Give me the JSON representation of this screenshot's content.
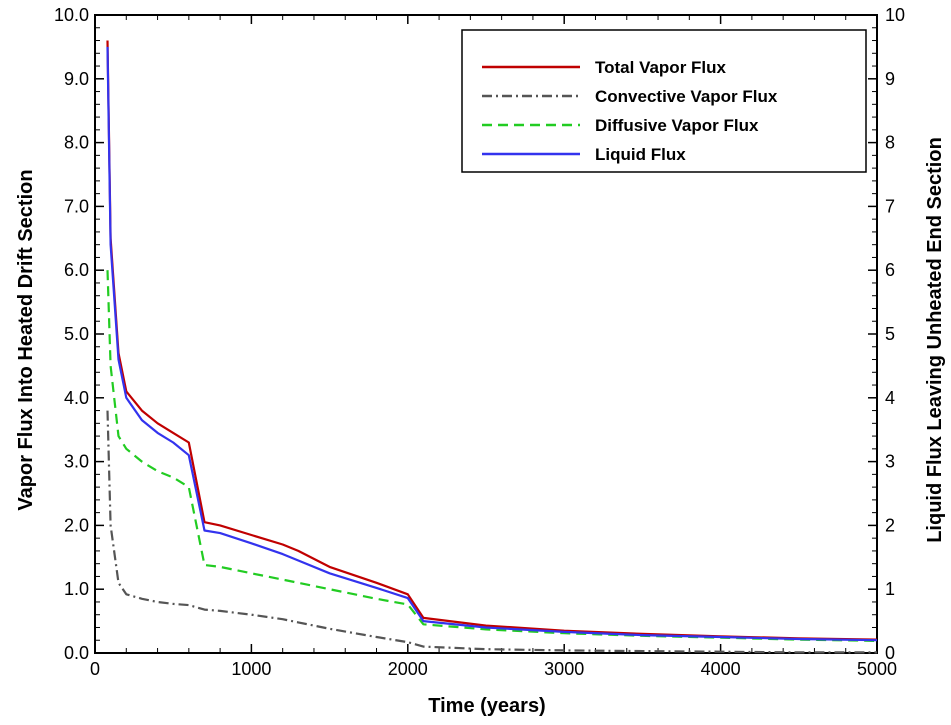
{
  "chart_data": {
    "type": "line",
    "title": "",
    "xlabel": "Time  (years)",
    "ylabel_left": "Vapor Flux Into Heated Drift Section",
    "ylabel_right": "Liquid Flux Leaving Unheated End Section",
    "xlim": [
      0,
      5000
    ],
    "ylim_left": [
      0,
      10
    ],
    "ylim_right": [
      0,
      10
    ],
    "x_ticks": [
      "0",
      "1000",
      "2000",
      "3000",
      "4000",
      "5000"
    ],
    "y_left_ticks": [
      "0.0",
      "1.0",
      "2.0",
      "3.0",
      "4.0",
      "5.0",
      "6.0",
      "7.0",
      "8.0",
      "9.0",
      "10.0"
    ],
    "y_right_ticks": [
      "0",
      "1",
      "2",
      "3",
      "4",
      "5",
      "6",
      "7",
      "8",
      "9",
      "10"
    ],
    "grid": false,
    "legend_position": "top-right",
    "series": [
      {
        "name": "Total Vapor Flux",
        "color": "#c00000",
        "dash": "solid",
        "axis": "left",
        "x": [
          80,
          100,
          150,
          200,
          300,
          400,
          500,
          600,
          700,
          800,
          1000,
          1200,
          1300,
          1500,
          1800,
          2000,
          2100,
          2500,
          3000,
          3500,
          4000,
          4500,
          5000
        ],
        "y": [
          9.6,
          6.5,
          4.7,
          4.1,
          3.8,
          3.6,
          3.45,
          3.3,
          2.05,
          2.0,
          1.85,
          1.7,
          1.6,
          1.35,
          1.1,
          0.92,
          0.55,
          0.43,
          0.35,
          0.3,
          0.26,
          0.23,
          0.21
        ]
      },
      {
        "name": "Convective Vapor Flux",
        "color": "#555555",
        "dash": "dashdot",
        "axis": "left",
        "x": [
          80,
          100,
          150,
          200,
          300,
          400,
          500,
          600,
          700,
          800,
          1000,
          1200,
          1300,
          1500,
          1800,
          2000,
          2100,
          2500,
          3000,
          3500,
          4000,
          4500,
          5000
        ],
        "y": [
          3.8,
          2.0,
          1.1,
          0.92,
          0.85,
          0.8,
          0.77,
          0.75,
          0.68,
          0.66,
          0.6,
          0.53,
          0.48,
          0.38,
          0.25,
          0.17,
          0.1,
          0.06,
          0.04,
          0.03,
          0.02,
          0.01,
          0.01
        ]
      },
      {
        "name": "Diffusive Vapor Flux",
        "color": "#22cc22",
        "dash": "dashed",
        "axis": "left",
        "x": [
          80,
          100,
          150,
          200,
          300,
          400,
          500,
          600,
          700,
          800,
          1000,
          1200,
          1300,
          1500,
          1800,
          2000,
          2100,
          2500,
          3000,
          3500,
          4000,
          4500,
          5000
        ],
        "y": [
          6.0,
          4.5,
          3.4,
          3.2,
          3.0,
          2.85,
          2.75,
          2.6,
          1.38,
          1.35,
          1.25,
          1.15,
          1.1,
          1.0,
          0.85,
          0.76,
          0.45,
          0.37,
          0.31,
          0.27,
          0.24,
          0.21,
          0.19
        ]
      },
      {
        "name": "Liquid Flux",
        "color": "#3333ee",
        "dash": "solid",
        "axis": "right",
        "x": [
          80,
          100,
          150,
          200,
          300,
          400,
          500,
          600,
          700,
          800,
          1000,
          1200,
          1300,
          1500,
          1800,
          2000,
          2100,
          2500,
          3000,
          3500,
          4000,
          4500,
          5000
        ],
        "y": [
          9.5,
          6.4,
          4.6,
          4.0,
          3.65,
          3.45,
          3.3,
          3.1,
          1.92,
          1.88,
          1.72,
          1.55,
          1.45,
          1.25,
          1.02,
          0.86,
          0.5,
          0.4,
          0.33,
          0.28,
          0.25,
          0.22,
          0.2
        ]
      }
    ]
  }
}
